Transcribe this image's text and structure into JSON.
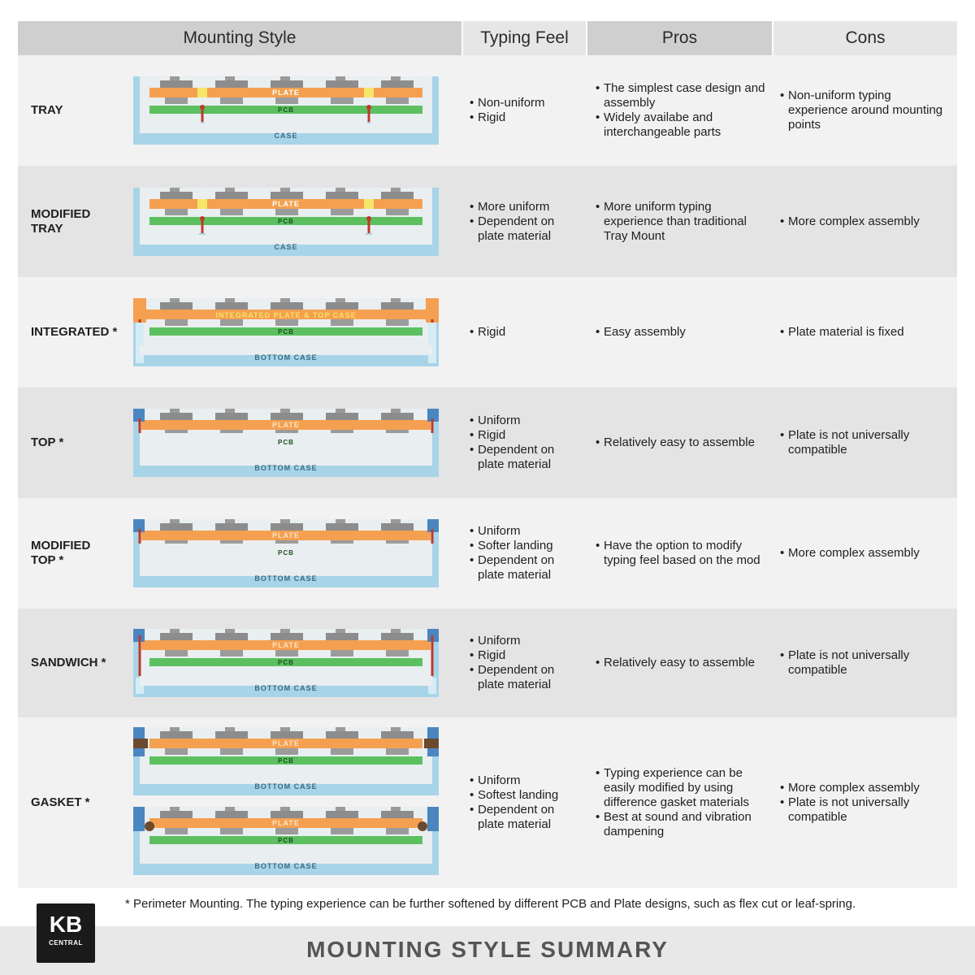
{
  "headers": {
    "mounting_style": "Mounting Style",
    "typing_feel": "Typing Feel",
    "pros": "Pros",
    "cons": "Cons"
  },
  "colors": {
    "header_dark": "#cfcfcf",
    "header_light": "#e6e6e6",
    "case": "#a8d4e8",
    "plate": "#f5a050",
    "pcb": "#5cc060",
    "switch": "#8c8c8c",
    "screw": "#c0392b",
    "standoff": "#f6e66a",
    "top_case": "#4a86c0",
    "gasket": "#6b4a2e"
  },
  "diagram_labels": {
    "plate": "PLATE",
    "pcb": "PCB",
    "case": "CASE",
    "bottom_case": "BOTTOM CASE",
    "integrated": "INTEGRATED PLATE & TOP CASE"
  },
  "rows": [
    {
      "style": [
        "TRAY"
      ],
      "feel": [
        "Non-uniform",
        "Rigid"
      ],
      "pros": [
        "The simplest case design and assembly",
        "Widely availabe and interchangeable parts"
      ],
      "cons": [
        "Non-uniform typing experience around mounting points"
      ]
    },
    {
      "style": [
        "MODIFIED",
        "TRAY"
      ],
      "feel": [
        "More uniform",
        "Dependent on plate material"
      ],
      "pros": [
        "More uniform typing experience than traditional Tray Mount"
      ],
      "cons": [
        "More complex assembly"
      ]
    },
    {
      "style": [
        "INTEGRATED *"
      ],
      "feel": [
        "Rigid"
      ],
      "pros": [
        "Easy assembly"
      ],
      "cons": [
        "Plate material is fixed"
      ]
    },
    {
      "style": [
        "TOP *"
      ],
      "feel": [
        "Uniform",
        "Rigid",
        "Dependent on plate material"
      ],
      "pros": [
        "Relatively easy to assemble"
      ],
      "cons": [
        "Plate is not universally compatible"
      ]
    },
    {
      "style": [
        "MODIFIED",
        "TOP *"
      ],
      "feel": [
        "Uniform",
        "Softer landing",
        "Dependent on plate material"
      ],
      "pros": [
        "Have the option to modify typing feel based on the mod"
      ],
      "cons": [
        "More complex assembly"
      ]
    },
    {
      "style": [
        "SANDWICH *"
      ],
      "feel": [
        "Uniform",
        "Rigid",
        "Dependent on plate material"
      ],
      "pros": [
        "Relatively easy to assemble"
      ],
      "cons": [
        "Plate is not universally compatible"
      ]
    },
    {
      "style": [
        "GASKET *"
      ],
      "feel": [
        "Uniform",
        "Softest landing",
        "Dependent on plate material"
      ],
      "pros": [
        "Typing experience can be easily modified by using difference gasket materials",
        "Best at sound and vibration dampening"
      ],
      "cons": [
        "More complex assembly",
        "Plate is not universally compatible"
      ]
    }
  ],
  "footnote": "* Perimeter Mounting. The typing experience can be further softened by different PCB and Plate designs, such as flex cut or leaf-spring.",
  "title": "MOUNTING STYLE SUMMARY",
  "logo": {
    "kb": "KB",
    "central": "CENTRAL"
  }
}
